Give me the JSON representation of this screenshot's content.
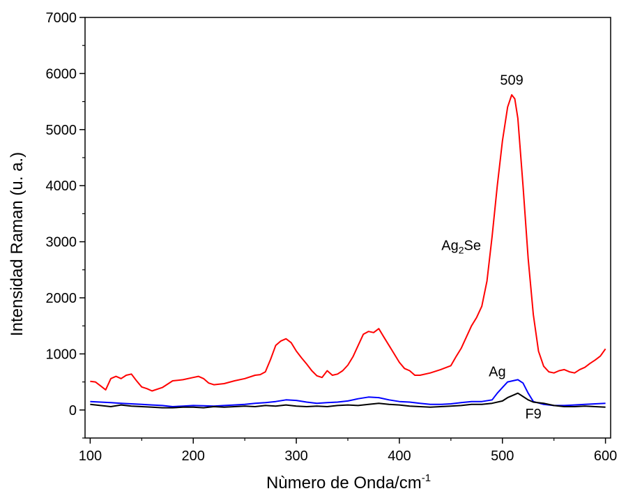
{
  "chart_data": {
    "type": "line",
    "xlabel": "Nùmero de Onda/cm",
    "xlabel_sup": "-1",
    "ylabel": "Intensidad Raman (u. a.)",
    "xlim": [
      95,
      605
    ],
    "ylim": [
      -500,
      7000
    ],
    "x_ticks": [
      100,
      200,
      300,
      400,
      500,
      600
    ],
    "x_tick_labels": [
      "100",
      "200",
      "300",
      "400",
      "500",
      "600"
    ],
    "y_ticks": [
      0,
      1000,
      2000,
      3000,
      4000,
      5000,
      6000,
      7000
    ],
    "y_tick_labels": [
      "0",
      "1000",
      "2000",
      "3000",
      "4000",
      "5000",
      "6000",
      "7000"
    ],
    "grid": false,
    "legend": "none",
    "annotations": [
      {
        "text": "509",
        "x": 509,
        "y": 5800
      },
      {
        "text_main": "Ag",
        "text_sub": "2",
        "text_tail": "Se",
        "x": 460,
        "y": 2850
      },
      {
        "text": "Ag",
        "x": 495,
        "y": 600
      },
      {
        "text": "F9",
        "x": 530,
        "y": -150
      }
    ],
    "series": [
      {
        "color": "#ff0000",
        "x": [
          100,
          105,
          110,
          115,
          120,
          125,
          130,
          135,
          140,
          145,
          150,
          155,
          160,
          170,
          180,
          190,
          200,
          205,
          210,
          215,
          220,
          230,
          240,
          250,
          260,
          265,
          270,
          275,
          280,
          285,
          290,
          295,
          300,
          305,
          310,
          315,
          320,
          325,
          330,
          335,
          340,
          345,
          350,
          355,
          360,
          365,
          370,
          375,
          380,
          385,
          390,
          395,
          400,
          405,
          410,
          415,
          420,
          430,
          440,
          450,
          455,
          460,
          465,
          470,
          475,
          480,
          485,
          490,
          495,
          500,
          505,
          509,
          512,
          515,
          520,
          525,
          530,
          535,
          540,
          545,
          550,
          555,
          560,
          565,
          570,
          575,
          580,
          585,
          590,
          595,
          600
        ],
        "values": [
          510,
          500,
          430,
          360,
          560,
          600,
          560,
          620,
          640,
          520,
          410,
          380,
          340,
          400,
          520,
          540,
          580,
          600,
          560,
          480,
          450,
          470,
          520,
          560,
          620,
          630,
          680,
          900,
          1150,
          1230,
          1270,
          1200,
          1050,
          930,
          820,
          700,
          610,
          580,
          700,
          620,
          640,
          700,
          800,
          950,
          1150,
          1350,
          1400,
          1380,
          1450,
          1300,
          1150,
          1000,
          850,
          740,
          700,
          620,
          620,
          660,
          720,
          790,
          950,
          1100,
          1300,
          1500,
          1650,
          1850,
          2300,
          3100,
          4000,
          4800,
          5400,
          5620,
          5550,
          5200,
          4000,
          2700,
          1700,
          1050,
          780,
          680,
          660,
          700,
          720,
          680,
          660,
          720,
          760,
          830,
          890,
          960,
          1090
        ]
      },
      {
        "color": "#0000ff",
        "x": [
          100,
          110,
          120,
          130,
          140,
          150,
          160,
          170,
          180,
          190,
          200,
          210,
          220,
          230,
          240,
          250,
          260,
          270,
          280,
          290,
          300,
          310,
          320,
          330,
          340,
          350,
          360,
          370,
          380,
          390,
          400,
          410,
          420,
          430,
          440,
          450,
          460,
          470,
          480,
          490,
          495,
          500,
          505,
          510,
          515,
          520,
          525,
          530,
          540,
          550,
          560,
          570,
          580,
          590,
          600
        ],
        "values": [
          150,
          140,
          130,
          120,
          110,
          100,
          90,
          80,
          60,
          70,
          80,
          75,
          70,
          80,
          90,
          100,
          120,
          130,
          150,
          180,
          170,
          140,
          120,
          130,
          140,
          160,
          200,
          230,
          220,
          180,
          150,
          140,
          120,
          100,
          100,
          110,
          130,
          150,
          150,
          180,
          300,
          400,
          500,
          520,
          540,
          480,
          300,
          150,
          100,
          80,
          80,
          90,
          100,
          110,
          120
        ]
      },
      {
        "color": "#000000",
        "x": [
          100,
          110,
          120,
          130,
          140,
          150,
          160,
          170,
          180,
          190,
          200,
          210,
          220,
          230,
          240,
          250,
          260,
          270,
          280,
          290,
          300,
          310,
          320,
          330,
          340,
          350,
          360,
          370,
          380,
          390,
          400,
          410,
          420,
          430,
          440,
          450,
          460,
          470,
          480,
          490,
          500,
          505,
          510,
          515,
          520,
          525,
          530,
          540,
          550,
          560,
          570,
          580,
          590,
          600
        ],
        "values": [
          100,
          80,
          60,
          90,
          70,
          60,
          50,
          40,
          40,
          50,
          50,
          40,
          60,
          50,
          60,
          70,
          60,
          80,
          70,
          90,
          70,
          60,
          70,
          60,
          80,
          90,
          80,
          100,
          120,
          100,
          90,
          70,
          60,
          50,
          60,
          70,
          80,
          100,
          100,
          120,
          160,
          220,
          260,
          300,
          240,
          180,
          140,
          120,
          80,
          60,
          60,
          70,
          60,
          50
        ]
      }
    ]
  }
}
